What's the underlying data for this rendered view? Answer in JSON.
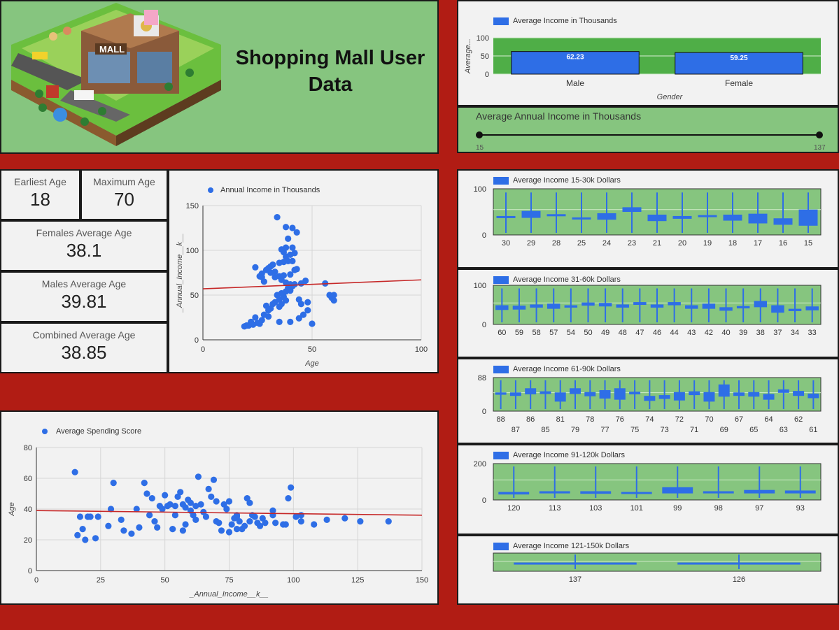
{
  "header": {
    "title": "Shopping Mall User Data",
    "mall_sign": "MALL"
  },
  "colors": {
    "bar": "#2e6ee6",
    "plot_green": "#4fae47",
    "panel_green": "#86c57f",
    "trend": "#c62828",
    "background": "#b11c14"
  },
  "kpis": {
    "earliest_age": {
      "label": "Earliest Age",
      "value": "18"
    },
    "maximum_age": {
      "label": "Maximum Age",
      "value": "70"
    },
    "females_avg": {
      "label": "Females Average Age",
      "value": "38.1"
    },
    "males_avg": {
      "label": "Males Average Age",
      "value": "39.81"
    },
    "combined_avg": {
      "label": "Combined Average Age",
      "value": "38.85"
    }
  },
  "slider": {
    "title": "Average Annual Income in Thousands",
    "min_label": "15",
    "max_label": "137",
    "min": 15,
    "max": 137
  },
  "chart_data": [
    {
      "id": "gender-bar",
      "type": "bar",
      "legend": "Average Income in Thousands",
      "categories": [
        "Male",
        "Female"
      ],
      "values": [
        62.23,
        59.25
      ],
      "value_labels": [
        "62.23",
        "59.25"
      ],
      "xlabel": "Gender",
      "ylabel": "Average...",
      "ylim": [
        0,
        100
      ],
      "yticks": [
        "0",
        "50",
        "100"
      ]
    },
    {
      "id": "age-income-scatter",
      "type": "scatter",
      "legend": "Annual Income in Thousands",
      "xlabel": "Age",
      "ylabel": "_Annual_Income__k__",
      "xlim": [
        0,
        100
      ],
      "ylim": [
        0,
        150
      ],
      "xticks": [
        "0",
        "50",
        "100"
      ],
      "yticks": [
        "0",
        "50",
        "100",
        "150"
      ],
      "trendline": [
        [
          0,
          57
        ],
        [
          100,
          67
        ]
      ],
      "points": [
        [
          19,
          15
        ],
        [
          20,
          16
        ],
        [
          21,
          16
        ],
        [
          23,
          17
        ],
        [
          22,
          20
        ],
        [
          25,
          19
        ],
        [
          26,
          18
        ],
        [
          24,
          25
        ],
        [
          27,
          22
        ],
        [
          28,
          28
        ],
        [
          30,
          33
        ],
        [
          31,
          35
        ],
        [
          29,
          38
        ],
        [
          32,
          40
        ],
        [
          33,
          42
        ],
        [
          35,
          37
        ],
        [
          36,
          40
        ],
        [
          35,
          45
        ],
        [
          38,
          44
        ],
        [
          37,
          48
        ],
        [
          34,
          50
        ],
        [
          36,
          52
        ],
        [
          38,
          54
        ],
        [
          40,
          55
        ],
        [
          39,
          58
        ],
        [
          41,
          60
        ],
        [
          40,
          62
        ],
        [
          42,
          62
        ],
        [
          38,
          64
        ],
        [
          36,
          67
        ],
        [
          33,
          70
        ],
        [
          35,
          71
        ],
        [
          37,
          72
        ],
        [
          40,
          73
        ],
        [
          31,
          75
        ],
        [
          33,
          76
        ],
        [
          29,
          78
        ],
        [
          27,
          70
        ],
        [
          28,
          65
        ],
        [
          30,
          80
        ],
        [
          31,
          82
        ],
        [
          32,
          84
        ],
        [
          35,
          86
        ],
        [
          37,
          87
        ],
        [
          39,
          88
        ],
        [
          41,
          88
        ],
        [
          38,
          93
        ],
        [
          40,
          95
        ],
        [
          42,
          97
        ],
        [
          37,
          98
        ],
        [
          36,
          101
        ],
        [
          38,
          103
        ],
        [
          41,
          103
        ],
        [
          39,
          113
        ],
        [
          43,
          120
        ],
        [
          38,
          126
        ],
        [
          42,
          78
        ],
        [
          45,
          63
        ],
        [
          47,
          66
        ],
        [
          48,
          42
        ],
        [
          50,
          18
        ],
        [
          44,
          24
        ],
        [
          46,
          28
        ],
        [
          48,
          33
        ],
        [
          56,
          63
        ],
        [
          58,
          50
        ],
        [
          59,
          47
        ],
        [
          60,
          44
        ],
        [
          60,
          50
        ],
        [
          40,
          20
        ],
        [
          45,
          40
        ],
        [
          44,
          45
        ],
        [
          35,
          20
        ],
        [
          30,
          26
        ],
        [
          24,
          81
        ],
        [
          27,
          74
        ],
        [
          26,
          71
        ],
        [
          34,
          137
        ],
        [
          41,
          125
        ],
        [
          43,
          79
        ]
      ]
    },
    {
      "id": "income-spending-scatter",
      "type": "scatter",
      "legend": "Average Spending Score",
      "xlabel": "_Annual_Income__k__",
      "ylabel": "Age",
      "xlim": [
        0,
        150
      ],
      "ylim": [
        0,
        80
      ],
      "xticks": [
        "0",
        "25",
        "50",
        "75",
        "100",
        "125",
        "150"
      ],
      "yticks": [
        "0",
        "20",
        "40",
        "60",
        "80"
      ],
      "trendline": [
        [
          0,
          39
        ],
        [
          150,
          36
        ]
      ],
      "points": [
        [
          15,
          64
        ],
        [
          16,
          23
        ],
        [
          17,
          35
        ],
        [
          18,
          27
        ],
        [
          19,
          20
        ],
        [
          20,
          35
        ],
        [
          21,
          35
        ],
        [
          23,
          21
        ],
        [
          24,
          35
        ],
        [
          28,
          29
        ],
        [
          29,
          40
        ],
        [
          30,
          57
        ],
        [
          33,
          33
        ],
        [
          34,
          26
        ],
        [
          37,
          24
        ],
        [
          39,
          40
        ],
        [
          40,
          28
        ],
        [
          42,
          57
        ],
        [
          43,
          50
        ],
        [
          44,
          36
        ],
        [
          45,
          47
        ],
        [
          46,
          32
        ],
        [
          47,
          28
        ],
        [
          48,
          42
        ],
        [
          49,
          40
        ],
        [
          50,
          49
        ],
        [
          51,
          42
        ],
        [
          52,
          43
        ],
        [
          53,
          27
        ],
        [
          54,
          42
        ],
        [
          55,
          48
        ],
        [
          56,
          51
        ],
        [
          57,
          43
        ],
        [
          58,
          30
        ],
        [
          59,
          46
        ],
        [
          60,
          44
        ],
        [
          61,
          36
        ],
        [
          62,
          42
        ],
        [
          63,
          61
        ],
        [
          64,
          43
        ],
        [
          65,
          38
        ],
        [
          67,
          53
        ],
        [
          68,
          48
        ],
        [
          69,
          59
        ],
        [
          70,
          45
        ],
        [
          71,
          31
        ],
        [
          72,
          26
        ],
        [
          73,
          43
        ],
        [
          74,
          40
        ],
        [
          75,
          45
        ],
        [
          76,
          30
        ],
        [
          77,
          34
        ],
        [
          78,
          36
        ],
        [
          78,
          27
        ],
        [
          79,
          32
        ],
        [
          80,
          27
        ],
        [
          81,
          29
        ],
        [
          82,
          47
        ],
        [
          83,
          32
        ],
        [
          84,
          36
        ],
        [
          85,
          35
        ],
        [
          86,
          31
        ],
        [
          87,
          29
        ],
        [
          88,
          34
        ],
        [
          89,
          31
        ],
        [
          92,
          39
        ],
        [
          93,
          31
        ],
        [
          96,
          30
        ],
        [
          98,
          47
        ],
        [
          99,
          54
        ],
        [
          101,
          35
        ],
        [
          103,
          36
        ],
        [
          103,
          32
        ],
        [
          108,
          30
        ],
        [
          113,
          33
        ],
        [
          120,
          34
        ],
        [
          126,
          32
        ],
        [
          137,
          32
        ],
        [
          54,
          36
        ],
        [
          57,
          26
        ],
        [
          58,
          41
        ],
        [
          60,
          39
        ],
        [
          62,
          33
        ],
        [
          66,
          35
        ],
        [
          70,
          32
        ],
        [
          75,
          25
        ],
        [
          78,
          35
        ],
        [
          83,
          44
        ],
        [
          92,
          36
        ],
        [
          97,
          30
        ]
      ]
    },
    {
      "id": "income-15-30",
      "type": "bar",
      "legend": "Average Income 15-30k Dollars",
      "categories": [
        "30",
        "29",
        "28",
        "25",
        "24",
        "23",
        "21",
        "20",
        "19",
        "18",
        "17",
        "16",
        "15"
      ],
      "ranges": [
        [
          38,
          41
        ],
        [
          37,
          52
        ],
        [
          41,
          45
        ],
        [
          34,
          38
        ],
        [
          33,
          47
        ],
        [
          50,
          60
        ],
        [
          30,
          44
        ],
        [
          35,
          41
        ],
        [
          40,
          43
        ],
        [
          31,
          44
        ],
        [
          25,
          46
        ],
        [
          22,
          36
        ],
        [
          20,
          55
        ]
      ],
      "ylim": [
        0,
        100
      ],
      "yticks": [
        "0",
        "100"
      ]
    },
    {
      "id": "income-31-60",
      "type": "bar",
      "legend": "Average Income 31-60k Dollars",
      "categories": [
        "60",
        "59",
        "58",
        "57",
        "54",
        "50",
        "49",
        "48",
        "47",
        "46",
        "44",
        "43",
        "42",
        "40",
        "39",
        "38",
        "37",
        "34",
        "33"
      ],
      "ranges": [
        [
          37,
          49
        ],
        [
          38,
          48
        ],
        [
          43,
          51
        ],
        [
          40,
          53
        ],
        [
          43,
          49
        ],
        [
          48,
          56
        ],
        [
          46,
          55
        ],
        [
          43,
          51
        ],
        [
          50,
          57
        ],
        [
          43,
          51
        ],
        [
          49,
          57
        ],
        [
          40,
          49
        ],
        [
          40,
          53
        ],
        [
          35,
          44
        ],
        [
          41,
          47
        ],
        [
          44,
          60
        ],
        [
          30,
          49
        ],
        [
          34,
          40
        ],
        [
          36,
          46
        ]
      ],
      "ylim": [
        0,
        100
      ],
      "yticks": [
        "0",
        "100"
      ]
    },
    {
      "id": "income-61-90",
      "type": "bar",
      "legend": "Average Income 61-90k Dollars",
      "categories": [
        "88",
        "87",
        "86",
        "85",
        "81",
        "79",
        "78",
        "77",
        "76",
        "75",
        "74",
        "73",
        "72",
        "71",
        "70",
        "69",
        "67",
        "65",
        "64",
        "63",
        "62",
        "61"
      ],
      "ranges": [
        [
          43,
          49
        ],
        [
          40,
          49
        ],
        [
          44,
          60
        ],
        [
          45,
          52
        ],
        [
          25,
          49
        ],
        [
          45,
          60
        ],
        [
          39,
          50
        ],
        [
          33,
          55
        ],
        [
          30,
          60
        ],
        [
          44,
          51
        ],
        [
          27,
          40
        ],
        [
          32,
          42
        ],
        [
          28,
          50
        ],
        [
          42,
          52
        ],
        [
          25,
          50
        ],
        [
          38,
          70
        ],
        [
          40,
          49
        ],
        [
          38,
          50
        ],
        [
          30,
          45
        ],
        [
          48,
          57
        ],
        [
          40,
          53
        ],
        [
          34,
          46
        ]
      ],
      "ylim": [
        0,
        88
      ],
      "yticks": [
        "0",
        "88"
      ]
    },
    {
      "id": "income-91-120",
      "type": "bar",
      "legend": "Average Income 91-120k Dollars",
      "categories": [
        "120",
        "113",
        "103",
        "101",
        "99",
        "98",
        "97",
        "93"
      ],
      "ranges": [
        [
          30,
          44
        ],
        [
          36,
          48
        ],
        [
          34,
          48
        ],
        [
          34,
          44
        ],
        [
          36,
          70
        ],
        [
          36,
          48
        ],
        [
          36,
          55
        ],
        [
          36,
          52
        ]
      ],
      "ylim": [
        0,
        200
      ],
      "yticks": [
        "0",
        "200"
      ]
    },
    {
      "id": "income-121-150",
      "type": "bar",
      "legend": "Average Income 121-150k Dollars",
      "categories": [
        "137",
        "126"
      ],
      "ranges": [
        [
          40,
          48
        ],
        [
          40,
          48
        ]
      ],
      "ylim": [
        0,
        100
      ],
      "yticks": []
    }
  ]
}
